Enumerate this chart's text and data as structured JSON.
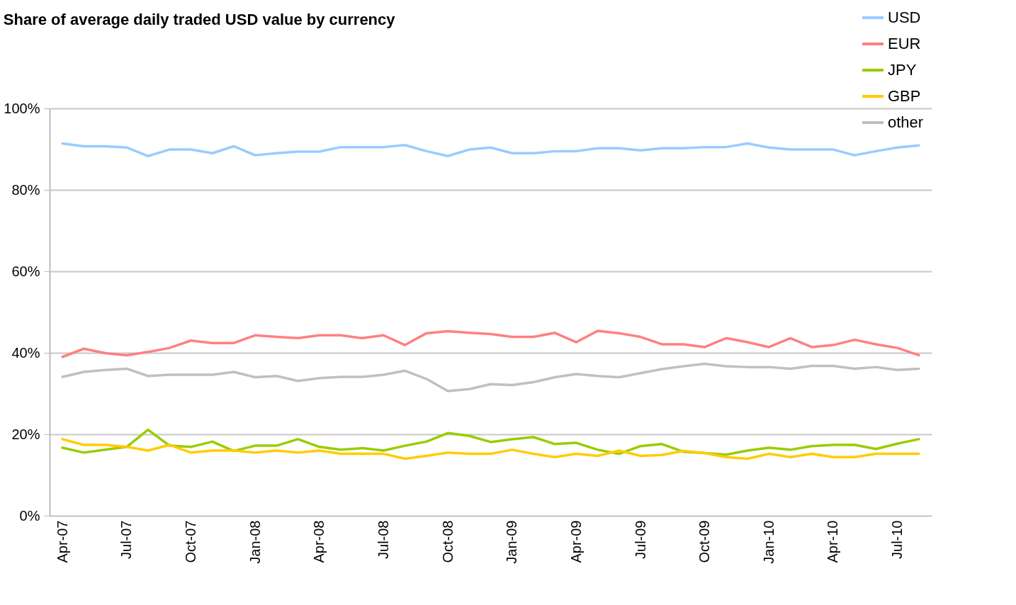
{
  "chart_data": {
    "type": "line",
    "title": "Share of average daily traded USD value by currency",
    "categories": [
      "Apr-07",
      null,
      null,
      "Jul-07",
      null,
      null,
      "Oct-07",
      null,
      null,
      "Jan-08",
      null,
      null,
      "Apr-08",
      null,
      null,
      "Jul-08",
      null,
      null,
      "Oct-08",
      null,
      null,
      "Jan-09",
      null,
      null,
      "Apr-09",
      null,
      null,
      "Jul-09",
      null,
      null,
      "Oct-09",
      null,
      null,
      "Jan-10",
      null,
      null,
      "Apr-10",
      null,
      null,
      "Jul-10",
      null
    ],
    "series": [
      {
        "name": "USD",
        "color": "#99ccff",
        "values": [
          91.4,
          90.7,
          90.7,
          90.4,
          88.3,
          89.9,
          89.9,
          89,
          90.7,
          88.5,
          89,
          89.4,
          89.4,
          90.5,
          90.5,
          90.5,
          91,
          89.5,
          88.3,
          89.9,
          90.4,
          89,
          89,
          89.5,
          89.5,
          90.2,
          90.2,
          89.7,
          90.2,
          90.2,
          90.5,
          90.5,
          91.4,
          90.4,
          89.9,
          89.9,
          89.9,
          88.5,
          89.5,
          90.4,
          90.9
        ]
      },
      {
        "name": "EUR",
        "color": "#ff8080",
        "values": [
          39,
          41,
          39.9,
          39.4,
          40.2,
          41.2,
          43,
          42.4,
          42.4,
          44.3,
          43.9,
          43.6,
          44.3,
          44.3,
          43.6,
          44.3,
          41.9,
          44.8,
          45.3,
          44.9,
          44.6,
          43.9,
          43.9,
          44.9,
          42.6,
          45.4,
          44.8,
          43.9,
          42.1,
          42.1,
          41.4,
          43.6,
          42.6,
          41.4,
          43.6,
          41.4,
          41.9,
          43.2,
          42.1,
          41.2,
          39.4
        ]
      },
      {
        "name": "JPY",
        "color": "#99cc00",
        "values": [
          16.7,
          15.5,
          16.2,
          16.9,
          21.1,
          17.2,
          16.9,
          18.2,
          15.9,
          17.2,
          17.2,
          18.8,
          16.9,
          16.2,
          16.6,
          16,
          17.2,
          18.2,
          20.3,
          19.6,
          18.1,
          18.8,
          19.3,
          17.6,
          17.9,
          16.2,
          15.2,
          17.1,
          17.6,
          15.7,
          15.4,
          15,
          16,
          16.7,
          16.2,
          17.1,
          17.4,
          17.4,
          16.4,
          17.7,
          18.8
        ]
      },
      {
        "name": "GBP",
        "color": "#ffcc00",
        "values": [
          18.8,
          17.4,
          17.4,
          16.9,
          16,
          17.4,
          15.5,
          16,
          16,
          15.5,
          16,
          15.5,
          16,
          15.2,
          15.2,
          15.2,
          14,
          14.7,
          15.5,
          15.2,
          15.2,
          16.2,
          15.2,
          14.4,
          15.2,
          14.7,
          16,
          14.7,
          14.9,
          15.9,
          15.4,
          14.4,
          14,
          15.2,
          14.4,
          15.2,
          14.4,
          14.4,
          15.2,
          15.2,
          15.2
        ]
      },
      {
        "name": "other",
        "color": "#c0c0c0",
        "values": [
          34.1,
          35.3,
          35.8,
          36.1,
          34.3,
          34.6,
          34.6,
          34.6,
          35.3,
          34,
          34.3,
          33.1,
          33.8,
          34.1,
          34.1,
          34.6,
          35.6,
          33.6,
          30.6,
          31.1,
          32.3,
          32.1,
          32.8,
          34,
          34.8,
          34.3,
          34,
          35,
          36,
          36.7,
          37.3,
          36.7,
          36.5,
          36.5,
          36.1,
          36.8,
          36.8,
          36.1,
          36.5,
          35.8,
          36.1
        ]
      }
    ],
    "ylim": [
      0,
      100
    ],
    "yticks": [
      {
        "value": 0,
        "label": "0%"
      },
      {
        "value": 20,
        "label": "20%"
      },
      {
        "value": 40,
        "label": "40%"
      },
      {
        "value": 60,
        "label": "60%"
      },
      {
        "value": 80,
        "label": "80%"
      },
      {
        "value": 100,
        "label": "100%"
      }
    ],
    "grid": "y",
    "legend": "top right",
    "marker": "none",
    "line_style": "solid"
  }
}
